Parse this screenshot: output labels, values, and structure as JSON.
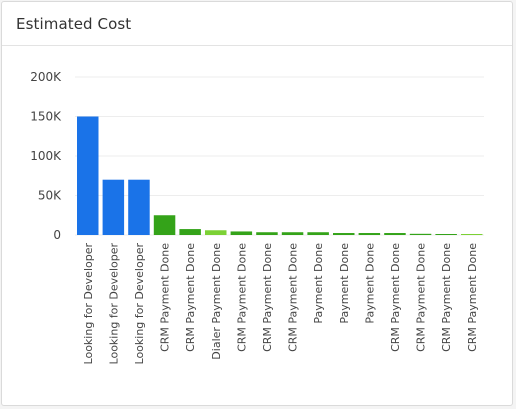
{
  "card": {
    "title": "Estimated Cost"
  },
  "chart_data": {
    "type": "bar",
    "title": "",
    "xlabel": "",
    "ylabel": "",
    "ylim": [
      0,
      200000
    ],
    "yticks": [
      0,
      50000,
      100000,
      150000,
      200000
    ],
    "ytick_labels": [
      "0",
      "50K",
      "100K",
      "150K",
      "200K"
    ],
    "grid": true,
    "legend": "none",
    "categories": [
      "Looking for Developer",
      "Looking for Developer",
      "Looking for Developer",
      "CRM Payment Done",
      "CRM Payment Done",
      "Dialer Payment Done",
      "CRM Payment Done",
      "CRM Payment Done",
      "CRM Payment Done",
      "Payment Done",
      "Payment Done",
      "Payment Done",
      "CRM Payment Done",
      "CRM Payment Done",
      "CRM Payment Done",
      "CRM Payment Done"
    ],
    "values": [
      150000,
      70000,
      70000,
      25000,
      7500,
      6000,
      4500,
      3500,
      3500,
      3500,
      2500,
      2500,
      2500,
      1500,
      1000,
      500
    ],
    "colors": [
      "#1a73e8",
      "#1a73e8",
      "#1a73e8",
      "#34a319",
      "#34a319",
      "#7cd135",
      "#34a319",
      "#34a319",
      "#34a319",
      "#34a319",
      "#34a319",
      "#34a319",
      "#34a319",
      "#34a319",
      "#34a319",
      "#7cd135"
    ]
  }
}
